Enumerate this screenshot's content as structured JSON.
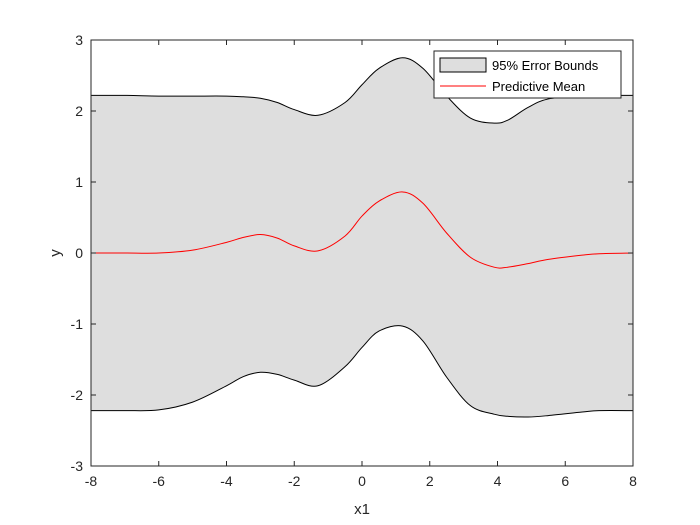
{
  "chart_data": {
    "type": "area",
    "title": "",
    "xlabel": "x1",
    "ylabel": "y",
    "xlim": [
      -8,
      8
    ],
    "ylim": [
      -3,
      3
    ],
    "xticks": [
      "-8",
      "-6",
      "-4",
      "-2",
      "0",
      "2",
      "4",
      "6",
      "8"
    ],
    "yticks": [
      "-3",
      "-2",
      "-1",
      "0",
      "1",
      "2",
      "3"
    ],
    "grid": false,
    "legend_position": "top-right",
    "x": [
      -8,
      -7,
      -6,
      -5,
      -4,
      -3.5,
      -3,
      -2.5,
      -2,
      -1.3,
      -0.5,
      0,
      0.5,
      1.2,
      1.8,
      2.5,
      3.2,
      3.9,
      4.3,
      4.9,
      5.5,
      6.5,
      7,
      8
    ],
    "series": [
      {
        "name": "95% Error Bounds",
        "kind": "band",
        "upper": [
          2.22,
          2.22,
          2.21,
          2.21,
          2.21,
          2.2,
          2.18,
          2.12,
          2.02,
          1.94,
          2.12,
          2.37,
          2.6,
          2.75,
          2.6,
          2.21,
          1.9,
          1.83,
          1.87,
          2.05,
          2.17,
          2.21,
          2.22,
          2.22
        ],
        "lower": [
          -2.22,
          -2.22,
          -2.21,
          -2.1,
          -1.87,
          -1.74,
          -1.68,
          -1.71,
          -1.79,
          -1.87,
          -1.6,
          -1.33,
          -1.1,
          -1.03,
          -1.24,
          -1.75,
          -2.15,
          -2.27,
          -2.3,
          -2.31,
          -2.29,
          -2.24,
          -2.22,
          -2.22
        ],
        "fill": "#dedede",
        "stroke": "#000000"
      },
      {
        "name": "Predictive Mean",
        "kind": "line",
        "values": [
          0,
          0,
          0,
          0.04,
          0.15,
          0.22,
          0.26,
          0.21,
          0.1,
          0.03,
          0.24,
          0.52,
          0.73,
          0.86,
          0.7,
          0.28,
          -0.06,
          -0.2,
          -0.2,
          -0.15,
          -0.09,
          -0.03,
          -0.01,
          0
        ],
        "color": "#ff0000"
      }
    ]
  }
}
